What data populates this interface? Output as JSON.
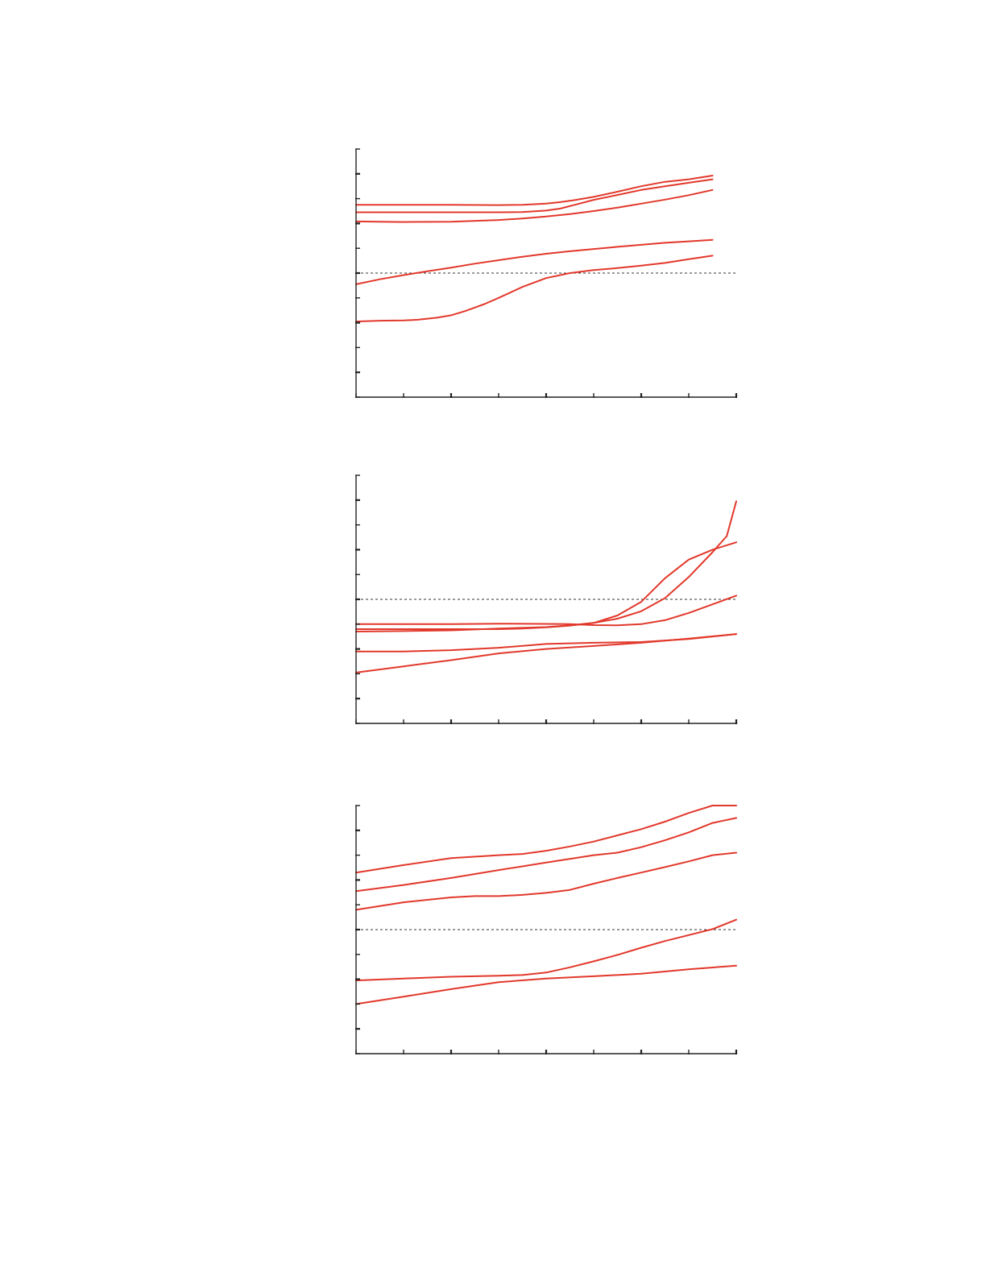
{
  "colors": {
    "series": "#e2382b",
    "axis": "#222222",
    "reference": "#333333"
  },
  "chart_data": [
    {
      "type": "line",
      "xlim": [
        0,
        8
      ],
      "ylim": [
        0,
        10
      ],
      "xticks": [
        0,
        1,
        2,
        3,
        4,
        5,
        6,
        7,
        8
      ],
      "yticks": [
        0,
        1,
        2,
        3,
        4,
        5,
        6,
        7,
        8,
        9,
        10
      ],
      "reference_line_y": 5,
      "grid": false,
      "series": [
        {
          "x": [
            0,
            1,
            2,
            3,
            3.5,
            4,
            4.3,
            4.6,
            5,
            5.5,
            6,
            6.5,
            7,
            7.5
          ],
          "values": [
            7.75,
            7.75,
            7.75,
            7.74,
            7.75,
            7.8,
            7.86,
            7.94,
            8.07,
            8.28,
            8.5,
            8.68,
            8.78,
            8.93
          ]
        },
        {
          "x": [
            0,
            1,
            2,
            3,
            3.5,
            4,
            4.3,
            4.6,
            5,
            5.5,
            6,
            6.5,
            7,
            7.5
          ],
          "values": [
            7.45,
            7.45,
            7.45,
            7.45,
            7.46,
            7.52,
            7.6,
            7.75,
            7.95,
            8.15,
            8.35,
            8.5,
            8.64,
            8.78
          ]
        },
        {
          "x": [
            0,
            1,
            2,
            3,
            3.5,
            4,
            4.5,
            5,
            5.5,
            6,
            6.5,
            7,
            7.5
          ],
          "values": [
            7.08,
            7.06,
            7.07,
            7.14,
            7.2,
            7.28,
            7.38,
            7.5,
            7.64,
            7.8,
            7.96,
            8.14,
            8.35
          ]
        },
        {
          "x": [
            0,
            0.5,
            1,
            1.5,
            2,
            2.5,
            3,
            3.5,
            4,
            4.5,
            5,
            5.5,
            6,
            6.5,
            7,
            7.5
          ],
          "values": [
            4.55,
            4.75,
            4.92,
            5.07,
            5.22,
            5.38,
            5.52,
            5.66,
            5.78,
            5.88,
            5.97,
            6.06,
            6.14,
            6.22,
            6.28,
            6.34
          ]
        },
        {
          "x": [
            0,
            0.5,
            1,
            1.3,
            1.7,
            2,
            2.3,
            2.7,
            3,
            3.5,
            4,
            4.5,
            5,
            5.5,
            6,
            6.5,
            7,
            7.5
          ],
          "values": [
            3.05,
            3.08,
            3.09,
            3.12,
            3.2,
            3.3,
            3.47,
            3.75,
            4.0,
            4.44,
            4.8,
            5.0,
            5.12,
            5.2,
            5.3,
            5.41,
            5.56,
            5.7
          ]
        }
      ]
    },
    {
      "type": "line",
      "xlim": [
        0,
        8
      ],
      "ylim": [
        0,
        10
      ],
      "xticks": [
        0,
        1,
        2,
        3,
        4,
        5,
        6,
        7,
        8
      ],
      "yticks": [
        0,
        1,
        2,
        3,
        4,
        5,
        6,
        7,
        8,
        9,
        10
      ],
      "reference_line_y": 5,
      "grid": false,
      "series": [
        {
          "x": [
            0,
            1,
            2,
            3,
            3.5,
            4,
            4.5,
            5,
            5.5,
            6,
            6.5,
            7,
            7.5,
            7.8,
            8
          ],
          "values": [
            3.8,
            3.8,
            3.8,
            3.8,
            3.82,
            3.87,
            3.94,
            4.05,
            4.22,
            4.52,
            5.05,
            5.9,
            6.9,
            7.55,
            8.95
          ]
        },
        {
          "x": [
            0,
            1,
            2,
            3,
            4,
            4.5,
            5,
            5.5,
            6,
            6.5,
            7,
            7.5,
            8
          ],
          "values": [
            3.7,
            3.72,
            3.75,
            3.82,
            3.88,
            3.95,
            4.05,
            4.35,
            4.9,
            5.85,
            6.6,
            7.0,
            7.3
          ]
        },
        {
          "x": [
            0,
            1,
            2,
            3,
            4,
            4.5,
            5,
            5.5,
            6,
            6.5,
            7,
            7.5,
            8
          ],
          "values": [
            4.0,
            4.0,
            4.0,
            4.02,
            4.01,
            4.0,
            3.96,
            3.95,
            4.0,
            4.16,
            4.45,
            4.8,
            5.15
          ]
        },
        {
          "x": [
            0,
            1,
            2,
            3,
            4,
            5,
            6,
            7,
            8
          ],
          "values": [
            2.9,
            2.9,
            2.95,
            3.05,
            3.2,
            3.25,
            3.28,
            3.4,
            3.6
          ]
        },
        {
          "x": [
            0,
            1,
            2,
            3,
            4,
            5,
            6,
            7,
            8
          ],
          "values": [
            2.05,
            2.3,
            2.55,
            2.82,
            3.0,
            3.12,
            3.25,
            3.42,
            3.6
          ]
        }
      ]
    },
    {
      "type": "line",
      "xlim": [
        0,
        8
      ],
      "ylim": [
        0,
        10
      ],
      "xticks": [
        0,
        1,
        2,
        3,
        4,
        5,
        6,
        7,
        8
      ],
      "yticks": [
        0,
        1,
        2,
        3,
        4,
        5,
        6,
        7,
        8,
        9,
        10
      ],
      "reference_line_y": 5,
      "grid": false,
      "series": [
        {
          "x": [
            0,
            1,
            2,
            3,
            3.5,
            4,
            4.5,
            5,
            5.5,
            6,
            6.5,
            7,
            7.5,
            8
          ],
          "values": [
            7.3,
            7.6,
            7.88,
            8.0,
            8.05,
            8.18,
            8.35,
            8.55,
            8.8,
            9.05,
            9.35,
            9.7,
            10.0,
            10.0
          ]
        },
        {
          "x": [
            0,
            1,
            2,
            3,
            4,
            5,
            5.5,
            6,
            6.5,
            7,
            7.5,
            8
          ],
          "values": [
            6.55,
            6.8,
            7.08,
            7.4,
            7.7,
            8.0,
            8.1,
            8.32,
            8.6,
            8.92,
            9.3,
            9.5
          ]
        },
        {
          "x": [
            0,
            1,
            2,
            2.5,
            3,
            3.5,
            4,
            4.5,
            5,
            5.5,
            6,
            6.5,
            7,
            7.5,
            8
          ],
          "values": [
            5.8,
            6.1,
            6.3,
            6.35,
            6.35,
            6.4,
            6.48,
            6.6,
            6.85,
            7.08,
            7.3,
            7.52,
            7.75,
            8.0,
            8.1
          ]
        },
        {
          "x": [
            0,
            1,
            2,
            3,
            3.5,
            4,
            4.5,
            5,
            5.5,
            6,
            6.5,
            7,
            7.5,
            8
          ],
          "values": [
            2.95,
            3.03,
            3.1,
            3.14,
            3.17,
            3.27,
            3.48,
            3.72,
            3.98,
            4.27,
            4.54,
            4.78,
            5.02,
            5.4
          ]
        },
        {
          "x": [
            0,
            1,
            2,
            3,
            4,
            5,
            6,
            7,
            8
          ],
          "values": [
            2.0,
            2.3,
            2.6,
            2.88,
            3.03,
            3.12,
            3.22,
            3.4,
            3.55
          ]
        }
      ]
    }
  ]
}
